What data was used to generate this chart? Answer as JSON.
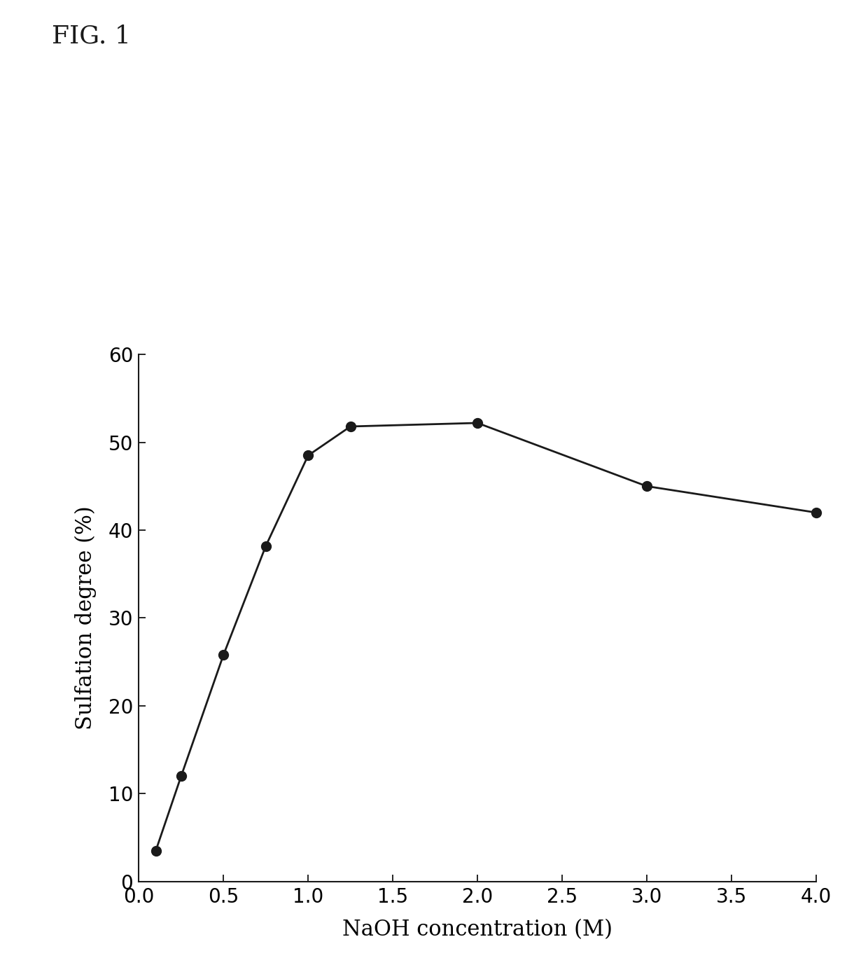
{
  "x": [
    0.1,
    0.25,
    0.5,
    0.75,
    1.0,
    1.25,
    2.0,
    3.0,
    4.0
  ],
  "y": [
    3.5,
    12.0,
    25.8,
    38.2,
    48.5,
    51.8,
    52.2,
    45.0,
    42.0
  ],
  "xlabel": "NaOH concentration (M)",
  "ylabel": "Sulfation degree (%)",
  "title": "FIG. 1",
  "xlim": [
    0.0,
    4.0
  ],
  "ylim": [
    0,
    60
  ],
  "xticks": [
    0.0,
    0.5,
    1.0,
    1.5,
    2.0,
    2.5,
    3.0,
    3.5,
    4.0
  ],
  "yticks": [
    0,
    10,
    20,
    30,
    40,
    50,
    60
  ],
  "line_color": "#1a1a1a",
  "marker": "o",
  "markersize": 10,
  "linewidth": 2.0,
  "background_color": "#ffffff",
  "title_fontsize": 26,
  "axis_label_fontsize": 22,
  "tick_fontsize": 20
}
